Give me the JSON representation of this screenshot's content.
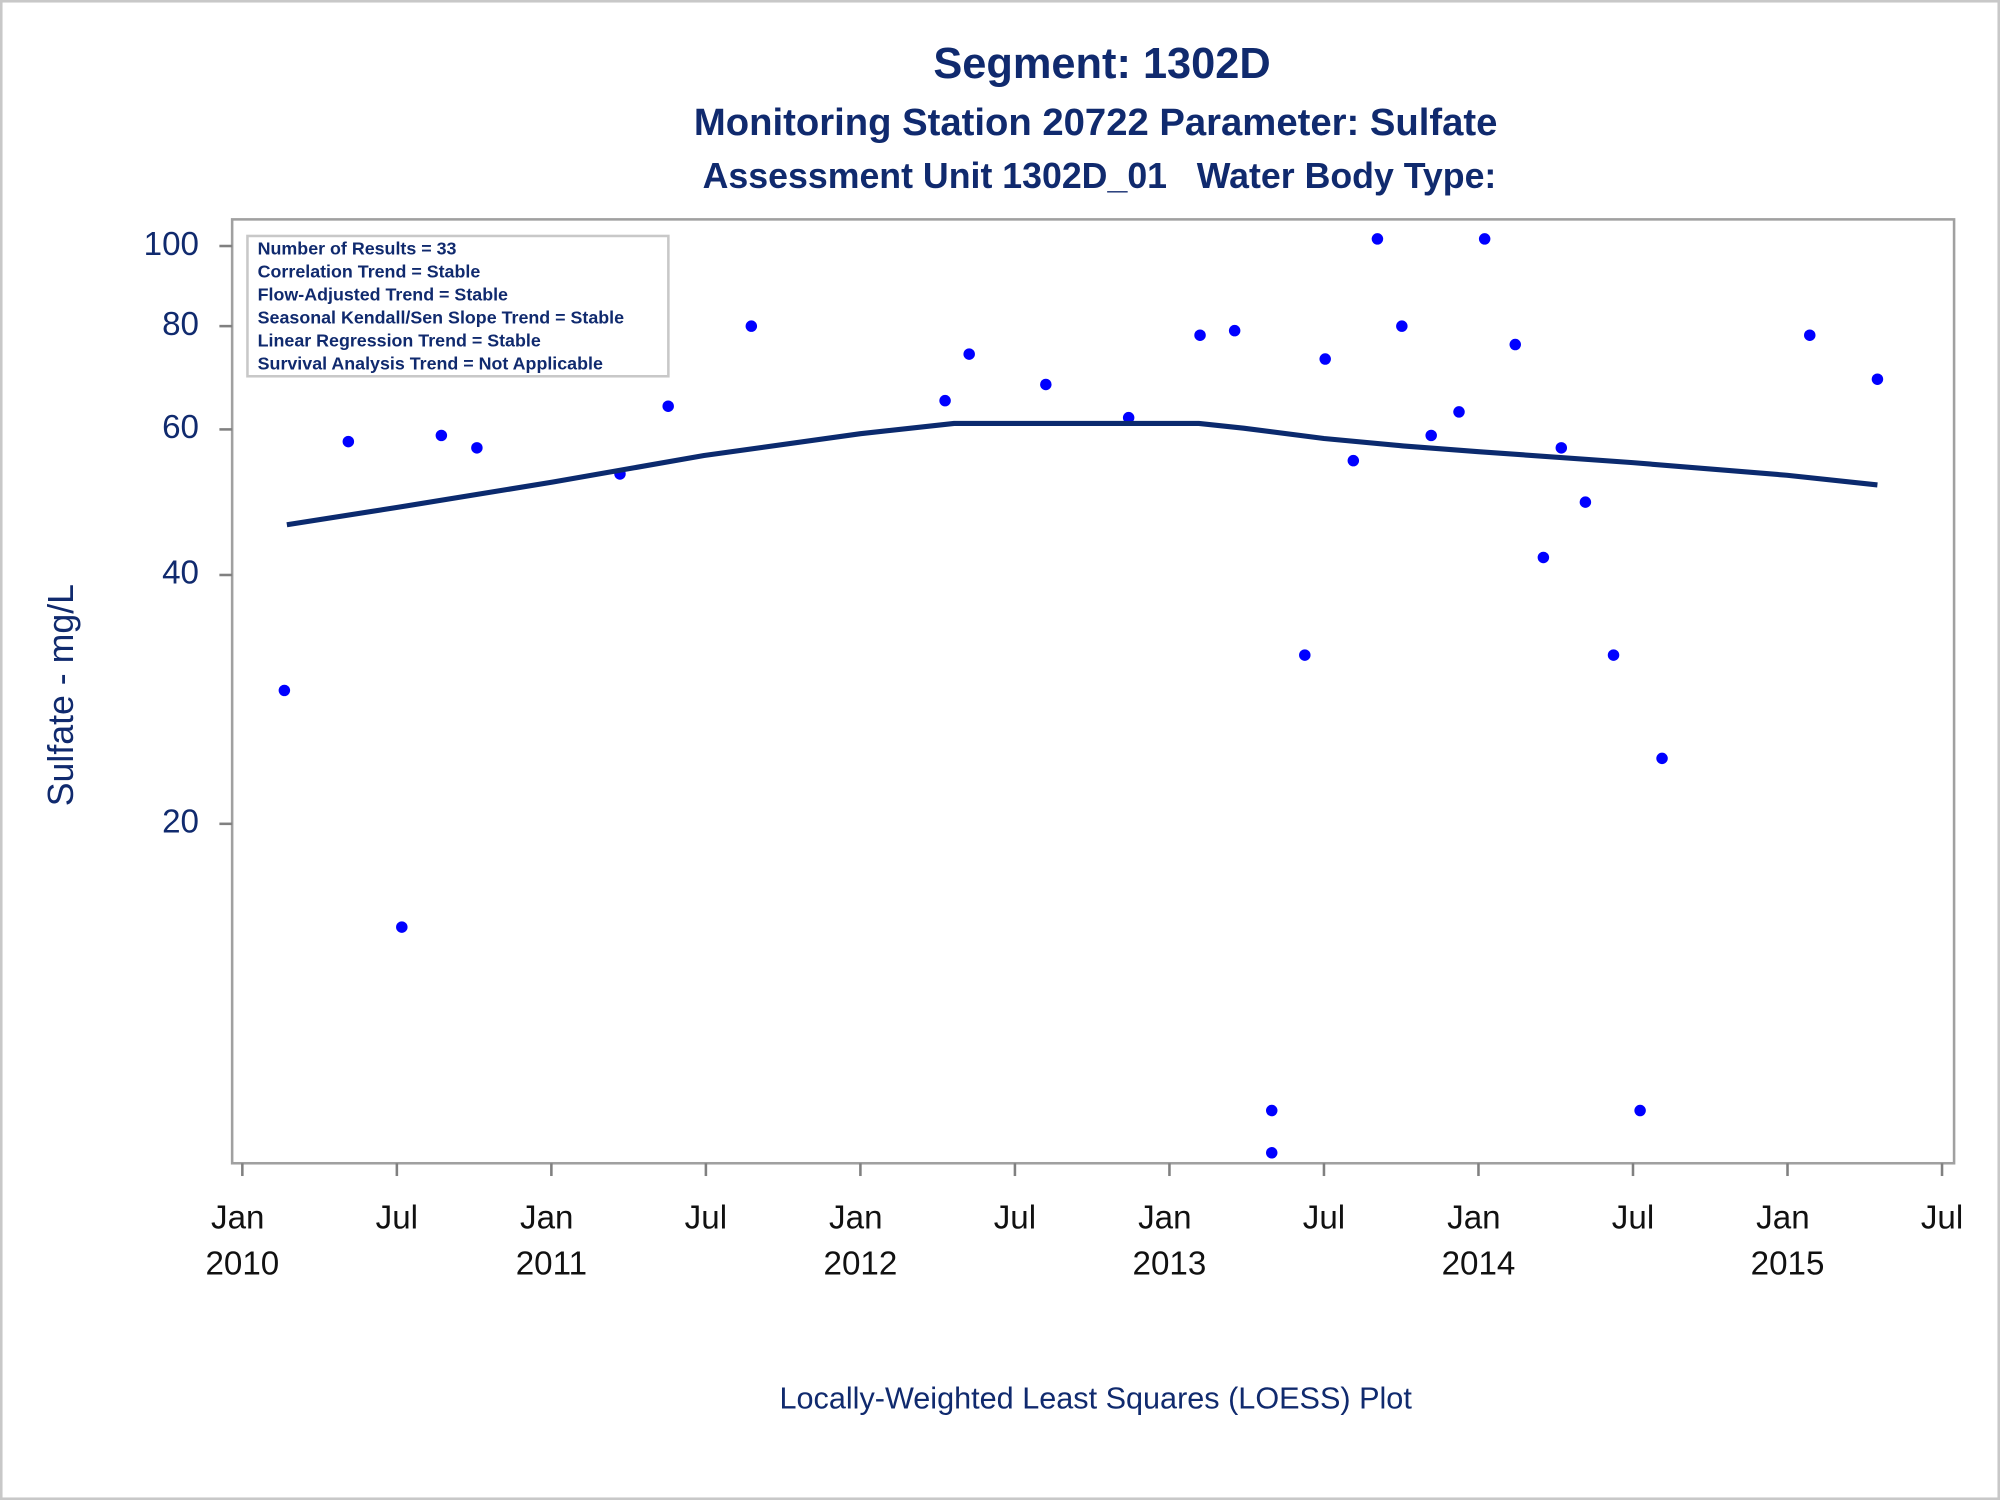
{
  "chart_data": {
    "type": "scatter",
    "title": "Segment: 1302D",
    "subtitle": "Monitoring Station 20722 Parameter: Sulfate",
    "subtitle2": "Assessment Unit 1302D_01   Water Body Type:",
    "y_label": "Sulfate - mg/L",
    "footnote": "Locally-Weighted Least Squares (LOESS) Plot",
    "annotations": [
      "Number of Results = 33",
      "Correlation Trend = Stable",
      "Flow-Adjusted Trend = Stable",
      "Seasonal Kendall/Sen Slope Trend = Stable",
      "Linear Regression Trend = Stable",
      "Survival Analysis Trend = Not Applicable"
    ],
    "ylog": true,
    "ylim": [
      7.77,
      107.7
    ],
    "yticks": [
      20,
      40,
      60,
      80,
      100
    ],
    "xlim": [
      2009.967,
      2015.539
    ],
    "xticks": [
      {
        "value": 2010,
        "label": "Jan 2010"
      },
      {
        "value": 2010.5,
        "label": "Jul"
      },
      {
        "value": 2011,
        "label": "Jan 2011"
      },
      {
        "value": 2011.5,
        "label": "Jul"
      },
      {
        "value": 2012,
        "label": "Jan 2012"
      },
      {
        "value": 2012.5,
        "label": "Jul"
      },
      {
        "value": 2013,
        "label": "Jan 2013"
      },
      {
        "value": 2013.5,
        "label": "Jul"
      },
      {
        "value": 2014,
        "label": "Jan 2014"
      },
      {
        "value": 2014.5,
        "label": "Jul"
      },
      {
        "value": 2015,
        "label": "Jan 2015"
      },
      {
        "value": 2015.5,
        "label": "Jul"
      }
    ],
    "series": [
      {
        "mode": "markers",
        "color": "#0000ff",
        "x": [
          2010.136,
          2010.343,
          2010.516,
          2010.644,
          2010.759,
          2011.222,
          2011.378,
          2011.647,
          2012.274,
          2012.352,
          2012.6,
          2012.868,
          2013.099,
          2013.211,
          2013.331,
          2013.331,
          2013.438,
          2013.504,
          2013.595,
          2013.673,
          2013.752,
          2013.847,
          2013.937,
          2014.02,
          2014.119,
          2014.21,
          2014.268,
          2014.346,
          2014.437,
          2014.523,
          2014.594,
          2015.072,
          2015.291
        ],
        "values": [
          29,
          58,
          15,
          59,
          57,
          53,
          64,
          80,
          65,
          74,
          68,
          62,
          78,
          79,
          9,
          8,
          32,
          73,
          55,
          102,
          80,
          59,
          63,
          102,
          76,
          42,
          57,
          49,
          32,
          9,
          24,
          78,
          69
        ]
      },
      {
        "mode": "line",
        "color": "#0b2a6e",
        "x": [
          2010.144,
          2010.504,
          2011.003,
          2011.494,
          2012.0,
          2012.303,
          2012.435,
          2013.095,
          2013.24,
          2013.5,
          2013.756,
          2014.0,
          2014.499,
          2014.998,
          2015.291
        ],
        "values": [
          46.0,
          48.3,
          51.8,
          55.8,
          59.3,
          61.0,
          61.0,
          61.0,
          60.2,
          58.5,
          57.3,
          56.4,
          54.7,
          52.8,
          51.4
        ]
      }
    ]
  }
}
